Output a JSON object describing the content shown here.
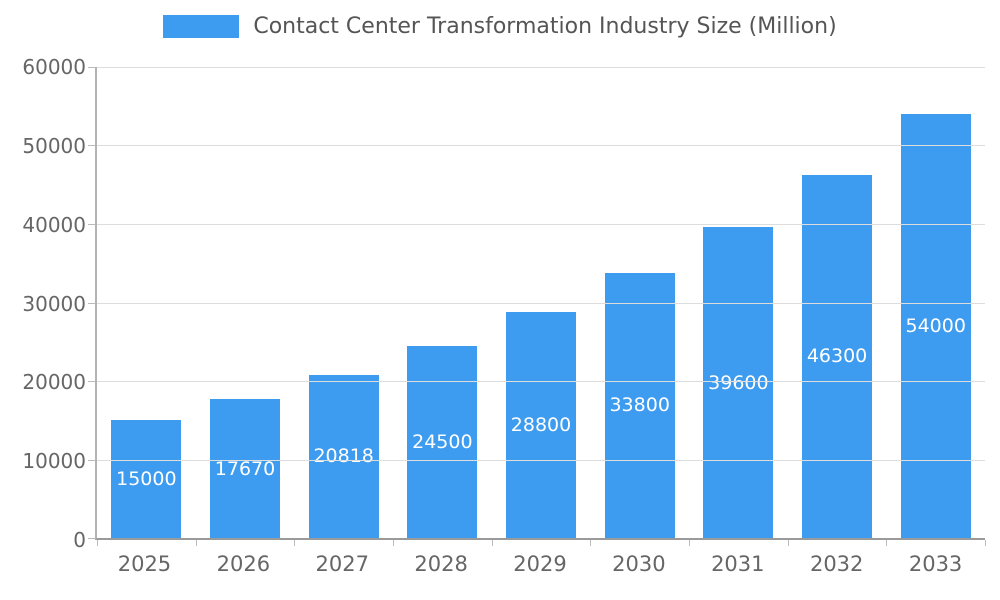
{
  "chart_data": {
    "type": "bar",
    "title": "Contact Center Transformation Industry Size (Million)",
    "categories": [
      "2025",
      "2026",
      "2027",
      "2028",
      "2029",
      "2030",
      "2031",
      "2032",
      "2033"
    ],
    "values": [
      15000,
      17670,
      20818,
      24500,
      28800,
      33800,
      39600,
      46300,
      54000
    ],
    "xlabel": "",
    "ylabel": "",
    "ylim": [
      0,
      60000
    ],
    "yticks": [
      0,
      10000,
      20000,
      30000,
      40000,
      50000,
      60000
    ],
    "grid": true,
    "legend_position": "top",
    "bar_color": "#3d9bf0",
    "bar_label_color": "#ffffff",
    "axis_text_color": "#666666",
    "gridline_color": "#dddddd"
  }
}
